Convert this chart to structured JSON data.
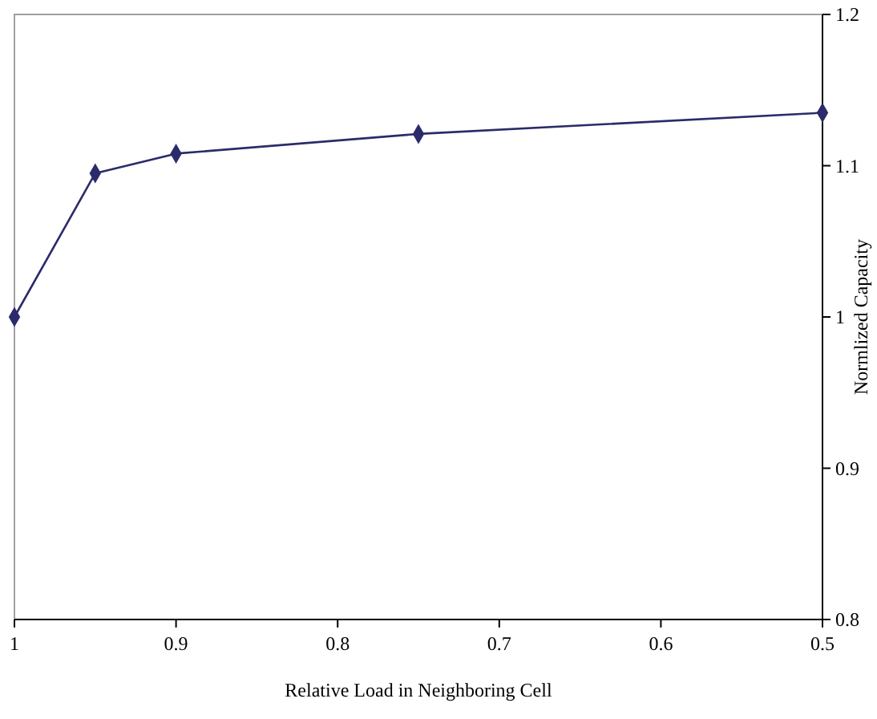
{
  "chart_data": {
    "type": "line",
    "xlabel": "Relative Load in Neighboring Cell",
    "ylabel": "Normlized Capacity",
    "x": [
      1,
      0.95,
      0.9,
      0.75,
      0.5
    ],
    "series": [
      {
        "color": "#2b2b6b",
        "values": [
          1.0,
          1.095,
          1.108,
          1.121,
          1.135
        ]
      }
    ],
    "xlim": [
      1,
      0.5
    ],
    "xticks": [
      1,
      0.9,
      0.8,
      0.7,
      0.6,
      0.5
    ],
    "ylim": [
      0.8,
      1.2
    ],
    "yticks": [
      0.8,
      0.9,
      1,
      1.1,
      1.2
    ],
    "grid": false,
    "marker": "diamond",
    "line_style": "solid"
  }
}
